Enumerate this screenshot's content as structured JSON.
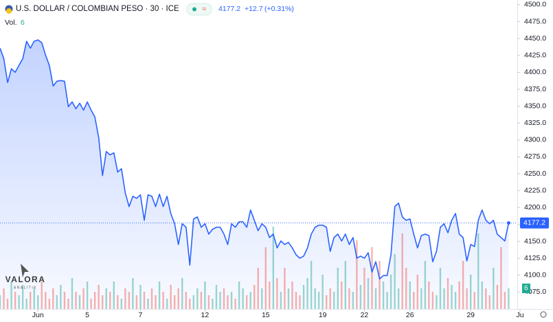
{
  "chart_data": {
    "type": "line",
    "title": "U.S. DOLLAR / COLOMBIAN PESO · 30 · ICE",
    "change_label": "+12.7",
    "change_pct_label": "(+0.31%)",
    "volume_label": "Vol.",
    "watermark": [
      "VALORA",
      "ANALITIK"
    ],
    "color": "#2962ff",
    "xlim": [
      0,
      137
    ],
    "xticks": [
      {
        "value": 10,
        "label": "Jun"
      },
      {
        "value": 23,
        "label": "5"
      },
      {
        "value": 37,
        "label": "7"
      },
      {
        "value": 54,
        "label": "12"
      },
      {
        "value": 70,
        "label": "15"
      },
      {
        "value": 85,
        "label": "19"
      },
      {
        "value": 96,
        "label": "22"
      },
      {
        "value": 108,
        "label": "26"
      },
      {
        "value": 124,
        "label": "29"
      },
      {
        "value": 137,
        "label": "Ju"
      }
    ],
    "ylim": [
      4050,
      4507
    ],
    "yticks": [
      {
        "value": 4075,
        "label": "4075.0"
      },
      {
        "value": 4100,
        "label": "4100.0"
      },
      {
        "value": 4125,
        "label": "4125.0"
      },
      {
        "value": 4150,
        "label": "4150.0"
      },
      {
        "value": 4175,
        "label": "4175.0"
      },
      {
        "value": 4200,
        "label": "4200.0"
      },
      {
        "value": 4225,
        "label": "4225.0"
      },
      {
        "value": 4250,
        "label": "4250.0"
      },
      {
        "value": 4275,
        "label": "4275.0"
      },
      {
        "value": 4300,
        "label": "4300.0"
      },
      {
        "value": 4325,
        "label": "4325.0"
      },
      {
        "value": 4350,
        "label": "4350.0"
      },
      {
        "value": 4375,
        "label": "4375.0"
      },
      {
        "value": 4400,
        "label": "4400.0"
      },
      {
        "value": 4425,
        "label": "4425.0"
      },
      {
        "value": 4450,
        "label": "4450.0"
      },
      {
        "value": 4475,
        "label": "4475.0"
      },
      {
        "value": 4500,
        "label": "4500.0"
      }
    ],
    "values": [
      4435.8,
      4420.5,
      4384.9,
      4405.2,
      4400.1,
      4410.3,
      4420.5,
      4446.0,
      4435.8,
      4446.0,
      4448.0,
      4443.9,
      4425.6,
      4410.3,
      4379.8,
      4386.9,
      4387.9,
      4386.9,
      4349.2,
      4356.3,
      4346.1,
      4354.3,
      4344.1,
      4356.3,
      4344.1,
      4333.9,
      4303.3,
      4247.3,
      4282.9,
      4277.9,
      4280.9,
      4252.4,
      4257.5,
      4221.8,
      4201.4,
      4216.7,
      4213.7,
      4218.8,
      4181.1,
      4218.8,
      4216.7,
      4201.4,
      4219.8,
      4201.4,
      4216.7,
      4191.2,
      4176.0,
      4145.4,
      4176.0,
      4170.9,
      4114.8,
      4183.1,
      4186.1,
      4170.9,
      4176.0,
      4160.7,
      4167.8,
      4170.9,
      4170.9,
      4160.7,
      4145.4,
      4176.0,
      4170.9,
      4179.0,
      4179.0,
      4170.9,
      4196.3,
      4181.1,
      4165.8,
      4176.0,
      4170.9,
      4155.6,
      4160.7,
      4140.3,
      4150.5,
      4145.4,
      4148.4,
      4140.3,
      4130.1,
      4125.0,
      4128.1,
      4140.3,
      4160.7,
      4170.9,
      4173.9,
      4173.9,
      4170.9,
      4135.2,
      4155.6,
      4160.7,
      4150.5,
      4160.7,
      4145.4,
      4155.6,
      4125.0,
      4128.1,
      4125.0,
      4133.2,
      4104.6,
      4119.9,
      4094.4,
      4099.5,
      4099.5,
      4130.1,
      4201.4,
      4206.5,
      4186.1,
      4181.1,
      4183.1,
      4160.7,
      4140.3,
      4158.6,
      4160.7,
      4158.6,
      4119.9,
      4135.2,
      4170.9,
      4176.0,
      4162.7,
      4181.1,
      4191.2,
      4160.7,
      4155.6,
      4121.0,
      4145.4,
      4142.3,
      4181.1,
      4196.3,
      4181.1,
      4176.0,
      4181.1,
      4160.7,
      4155.6,
      4150.5,
      4177.2
    ],
    "volume": {
      "ylim": [
        0,
        30
      ],
      "up_color": "#26a69a",
      "down_color": "#ef5350",
      "values": [
        4,
        6,
        3,
        8,
        5,
        4,
        7,
        3,
        5,
        6,
        4,
        8,
        5,
        3,
        6,
        4,
        7,
        5,
        3,
        9,
        5,
        4,
        6,
        8,
        3,
        5,
        7,
        4,
        6,
        5,
        8,
        4,
        3,
        6,
        5,
        9,
        4,
        7,
        5,
        3,
        6,
        4,
        8,
        5,
        3,
        7,
        4,
        6,
        9,
        5,
        3,
        4,
        6,
        5,
        8,
        4,
        3,
        7,
        5,
        6,
        4,
        5,
        3,
        8,
        6,
        4,
        5,
        7,
        12,
        6,
        18,
        8,
        24,
        9,
        5,
        12,
        6,
        8,
        5,
        4,
        7,
        9,
        14,
        6,
        5,
        10,
        4,
        6,
        5,
        12,
        8,
        14,
        6,
        5,
        20,
        7,
        12,
        9,
        18,
        6,
        14,
        8,
        5,
        10,
        16,
        6,
        22,
        12,
        8,
        5,
        10,
        6,
        14,
        8,
        5,
        4,
        12,
        6,
        9,
        7,
        5,
        8,
        14,
        6,
        10,
        5,
        22,
        8,
        6,
        4,
        12,
        7,
        18,
        5,
        6
      ]
    }
  }
}
